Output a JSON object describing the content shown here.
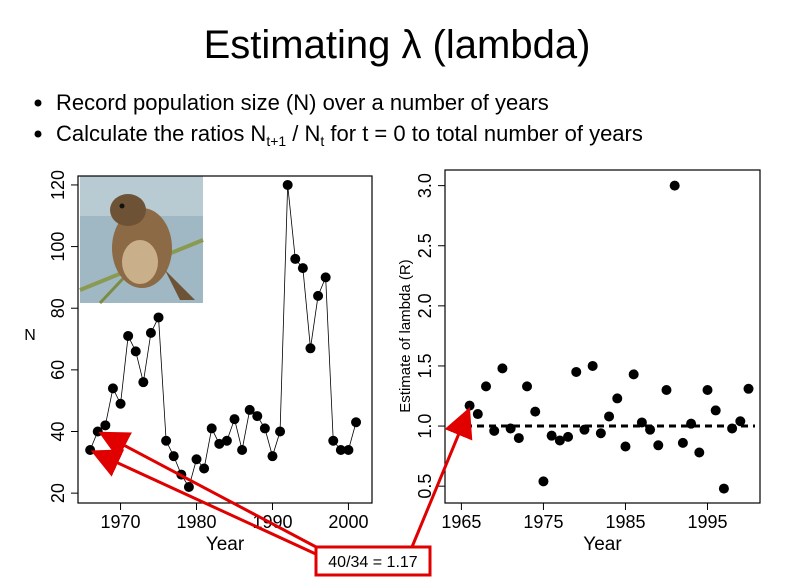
{
  "title": "Estimating λ (lambda)",
  "bullets": [
    {
      "text": "Record population size (N) over a number of years"
    },
    {
      "parts": [
        "Calculate the ratios N",
        "t+1",
        " / N",
        "t",
        " for t = 0 to total number of years"
      ]
    }
  ],
  "annotation": "40/34 = 1.17",
  "chart_data": [
    {
      "type": "line",
      "xlabel": "Year",
      "ylabel": "N",
      "color": "#000000",
      "x": [
        1966,
        1967,
        1968,
        1969,
        1970,
        1971,
        1972,
        1973,
        1974,
        1975,
        1976,
        1977,
        1978,
        1979,
        1980,
        1981,
        1982,
        1983,
        1984,
        1985,
        1986,
        1987,
        1988,
        1989,
        1990,
        1991,
        1992,
        1993,
        1994,
        1995,
        1996,
        1997,
        1998,
        1999,
        2000,
        2001
      ],
      "values": [
        34,
        40,
        42,
        54,
        49,
        71,
        66,
        56,
        72,
        77,
        37,
        32,
        26,
        22,
        31,
        28,
        41,
        36,
        37,
        44,
        34,
        47,
        45,
        41,
        32,
        40,
        120,
        96,
        93,
        67,
        84,
        90,
        37,
        34,
        34,
        43
      ],
      "xlim": [
        1964.4,
        2003.1
      ],
      "ylim": [
        16.8,
        122.9
      ],
      "xticks": [
        1970,
        1980,
        1990,
        2000
      ],
      "yticks": [
        20,
        40,
        60,
        80,
        100,
        120
      ]
    },
    {
      "type": "scatter",
      "xlabel": "Year",
      "ylabel": "Estimate of lambda (R)",
      "color": "#000000",
      "x": [
        1966,
        1967,
        1968,
        1969,
        1970,
        1971,
        1972,
        1973,
        1974,
        1975,
        1976,
        1977,
        1978,
        1979,
        1980,
        1981,
        1982,
        1983,
        1984,
        1985,
        1986,
        1987,
        1988,
        1989,
        1990,
        1991,
        1992,
        1993,
        1994,
        1995,
        1996,
        1997,
        1998,
        1999,
        2000
      ],
      "values": [
        1.17,
        1.1,
        1.33,
        0.96,
        1.48,
        0.98,
        0.9,
        1.33,
        1.12,
        0.54,
        0.92,
        0.88,
        0.91,
        1.45,
        0.97,
        1.5,
        0.94,
        1.08,
        1.23,
        0.83,
        1.43,
        1.03,
        0.97,
        0.84,
        1.3,
        3.0,
        0.86,
        1.02,
        0.78,
        1.3,
        1.13,
        0.48,
        0.98,
        1.04,
        1.31
      ],
      "reference_line": 1.0,
      "xlim": [
        1963,
        2001.4
      ],
      "ylim": [
        0.36,
        3.13
      ],
      "xticks": [
        1965,
        1975,
        1985,
        1995
      ],
      "yticks": [
        0.5,
        {
          "value": 1.0,
          "label": "1.0"
        },
        1.5,
        {
          "value": 2.0,
          "label": "2.0"
        },
        2.5,
        {
          "value": 3.0,
          "label": "3.0"
        }
      ]
    }
  ]
}
